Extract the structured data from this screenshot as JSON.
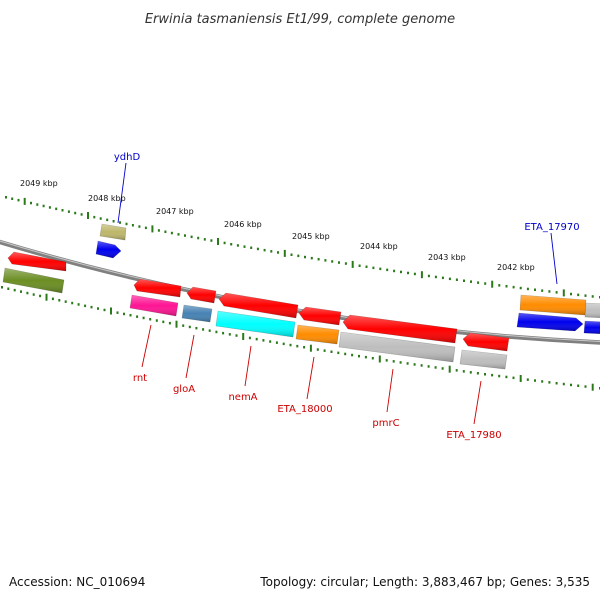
{
  "title": "Erwinia tasmaniensis Et1/99, complete genome",
  "footer": {
    "accession": "Accession: NC_010694",
    "topology": "Topology: circular; Length: 3,883,467 bp; Genes: 3,535"
  },
  "colors": {
    "backbone": "#808080",
    "tick_track": "#2a7a1a",
    "label_forward": "#0000cc",
    "label_reverse": "#cc0000"
  },
  "scale_ticks": [
    "2049 kbp",
    "2048 kbp",
    "2047 kbp",
    "2046 kbp",
    "2045 kbp",
    "2044 kbp",
    "2043 kbp",
    "2042 kbp"
  ],
  "genes": [
    {
      "strand": "reverse",
      "color": "#ff0000"
    },
    {
      "strand": "reverse",
      "color": "#6b8e23"
    },
    {
      "strand": "forward",
      "color": "#bdb76b"
    },
    {
      "strand": "forward",
      "color": "#0000ee"
    },
    {
      "strand": "reverse",
      "color": "#ff0000"
    },
    {
      "strand": "reverse",
      "color": "#ff1493"
    },
    {
      "strand": "reverse",
      "color": "#ff0000"
    },
    {
      "strand": "reverse",
      "color": "#4682b4"
    },
    {
      "strand": "reverse",
      "color": "#ff0000"
    },
    {
      "strand": "reverse",
      "color": "#00ffff"
    },
    {
      "strand": "reverse",
      "color": "#ff0000"
    },
    {
      "strand": "reverse",
      "color": "#ff8c00"
    },
    {
      "strand": "reverse",
      "color": "#ff0000"
    },
    {
      "strand": "reverse",
      "color": "#bebebe"
    },
    {
      "strand": "reverse",
      "color": "#ff0000"
    },
    {
      "strand": "reverse",
      "color": "#bebebe"
    },
    {
      "strand": "forward",
      "color": "#ff8c00"
    },
    {
      "strand": "forward",
      "color": "#0000ee"
    },
    {
      "strand": "forward",
      "color": "#bebebe"
    },
    {
      "strand": "forward",
      "color": "#0000ee"
    }
  ],
  "gene_labels": [
    {
      "text": "ydhD",
      "strand": "forward"
    },
    {
      "text": "ETA_17970",
      "strand": "forward"
    },
    {
      "text": "rnt",
      "strand": "reverse"
    },
    {
      "text": "gloA",
      "strand": "reverse"
    },
    {
      "text": "nemA",
      "strand": "reverse"
    },
    {
      "text": "ETA_18000",
      "strand": "reverse"
    },
    {
      "text": "pmrC",
      "strand": "reverse"
    },
    {
      "text": "ETA_17980",
      "strand": "reverse"
    }
  ]
}
